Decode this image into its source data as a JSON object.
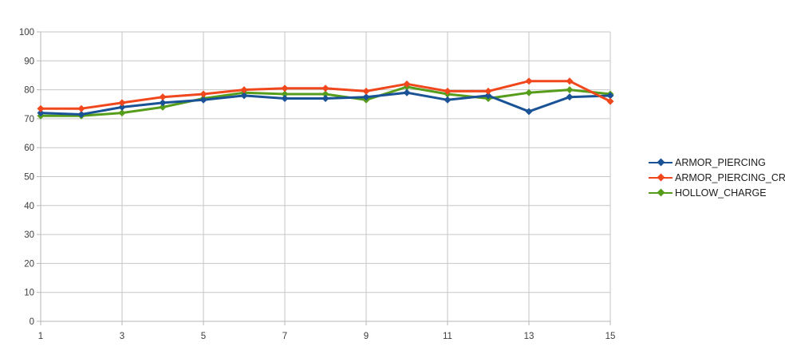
{
  "chart_data": {
    "type": "line",
    "title": "",
    "xlabel": "",
    "ylabel": "",
    "x": [
      1,
      2,
      3,
      4,
      5,
      6,
      7,
      8,
      9,
      10,
      11,
      12,
      13,
      14,
      15
    ],
    "xlim": [
      1,
      15
    ],
    "ylim": [
      0,
      100
    ],
    "y_ticks": [
      0,
      10,
      20,
      30,
      40,
      50,
      60,
      70,
      80,
      90,
      100
    ],
    "x_tick_labels": [
      "1",
      "3",
      "5",
      "7",
      "9",
      "11",
      "13",
      "15"
    ],
    "x_tick_positions": [
      1,
      3,
      5,
      7,
      9,
      11,
      13,
      15
    ],
    "grid": true,
    "legend_position": "right",
    "colors": {
      "background": "#ffffff",
      "gridline": "#c6c6c6",
      "axis": "#b5b5b5",
      "tick_text": "#3d3d3d",
      "legend_text": "#1c1c1c"
    },
    "series": [
      {
        "name": "ARMOR_PIERCING",
        "color": "#1a5296",
        "marker": "diamond",
        "values": [
          72,
          71.5,
          74,
          75.5,
          76.5,
          78,
          77,
          77,
          77.5,
          79,
          76.5,
          78,
          72.5,
          77.5,
          78
        ]
      },
      {
        "name": "ARMOR_PIERCING_CR",
        "color": "#f1471d",
        "marker": "diamond",
        "values": [
          73.5,
          73.5,
          75.5,
          77.5,
          78.5,
          80,
          80.5,
          80.5,
          79.5,
          82,
          79.5,
          79.5,
          83,
          83,
          76
        ]
      },
      {
        "name": "HOLLOW_CHARGE",
        "color": "#579d1c",
        "marker": "diamond",
        "values": [
          71,
          71,
          72,
          74,
          77,
          79,
          78.5,
          78.5,
          76.5,
          81,
          78.5,
          77,
          79,
          80,
          78.5
        ]
      }
    ]
  }
}
